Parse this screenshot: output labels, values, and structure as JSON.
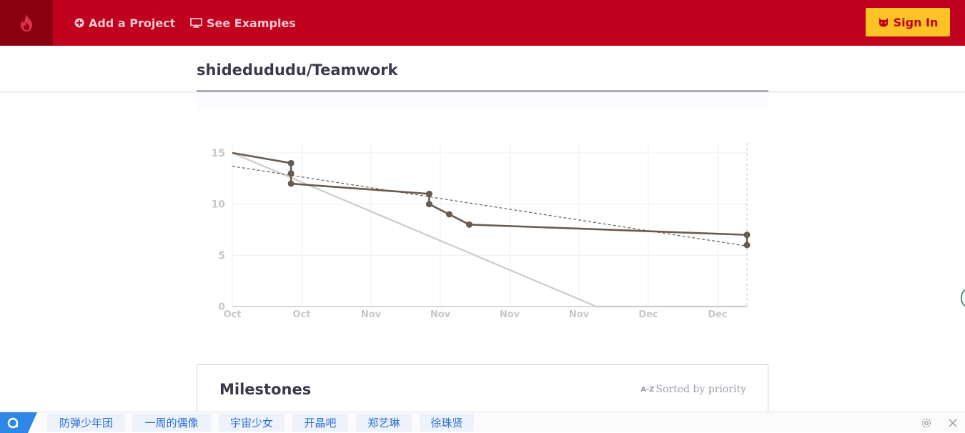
{
  "nav": {
    "add_project": "Add a Project",
    "see_examples": "See Examples",
    "sign_in": "Sign In"
  },
  "page": {
    "title": "shidedududu/Teamwork"
  },
  "chart_data": {
    "type": "line",
    "title": "",
    "xlabel": "",
    "ylabel": "",
    "ylim": [
      0,
      16
    ],
    "y_ticks": [
      0,
      5,
      10,
      15
    ],
    "x_tick_labels": [
      "Oct",
      "Oct",
      "Nov",
      "Nov",
      "Nov",
      "Nov",
      "Dec",
      "Dec"
    ],
    "x_range": [
      0,
      7.45
    ],
    "grid": true,
    "series": [
      {
        "style": "ideal",
        "color": "#cccccc",
        "x": [
          0,
          5.27,
          7.45
        ],
        "y": [
          15,
          0,
          0
        ]
      },
      {
        "style": "actual",
        "color": "#6b5a4e",
        "markers": true,
        "x": [
          0,
          0.85,
          0.85,
          0.85,
          2.85,
          2.85,
          3.14,
          3.43,
          7.45,
          7.45
        ],
        "y": [
          15,
          14,
          13,
          12,
          11,
          10,
          9,
          8,
          7,
          6
        ],
        "marked_points": [
          1,
          2,
          3,
          4,
          5,
          6,
          7,
          8,
          9
        ]
      },
      {
        "style": "trend",
        "color": "#6b5a4e",
        "dashed": true,
        "x": [
          0,
          7.45
        ],
        "y": [
          13.7,
          5.9
        ]
      }
    ],
    "now_marker_x": 7.45
  },
  "milestones": {
    "title": "Milestones",
    "sort_icon": "A-Z",
    "sort_label": "Sorted by priority"
  },
  "bottom_bar": {
    "tags": [
      "防弹少年团",
      "一周的偶像",
      "宇宙少女",
      "开晶吧",
      "郑艺琳",
      "徐珠贤"
    ]
  },
  "colors": {
    "brand": "#c0021e",
    "brand_dark": "#8b0010",
    "signin": "#fcc226",
    "line": "#6b5a4e"
  }
}
